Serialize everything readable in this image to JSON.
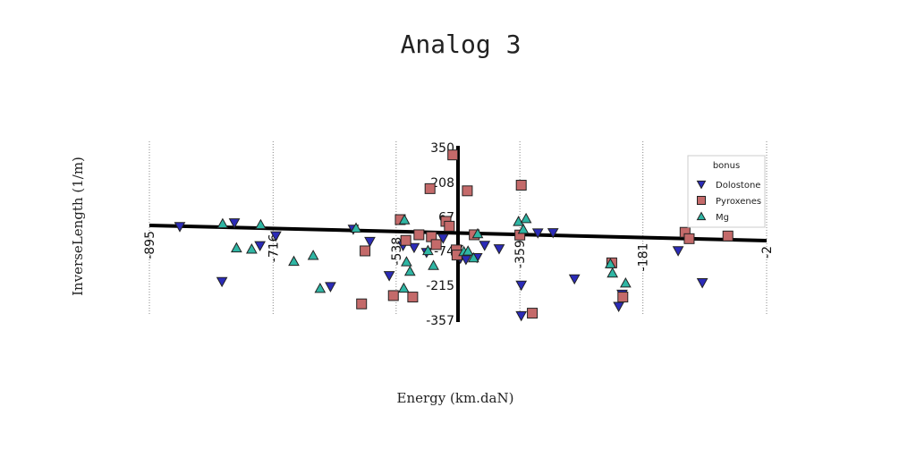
{
  "chart_data": {
    "type": "scatter",
    "title": "Analog 3",
    "xlabel": "Energy (km.daN)",
    "ylabel": "InverseLength (1/m)",
    "x_ticks": [
      "-895",
      "-716",
      "-538",
      "-359",
      "-181",
      "-2"
    ],
    "x_tick_values": [
      -895,
      -716,
      -538,
      -359,
      -181,
      -2
    ],
    "y_ticks": [
      "350",
      "208",
      "67",
      "-74",
      "-215",
      "-357"
    ],
    "y_tick_values": [
      350,
      208,
      67,
      -74,
      -215,
      -357
    ],
    "xlim": [
      -895,
      -2
    ],
    "ylim": [
      -357,
      350
    ],
    "grid": "vertical-dotted",
    "legend": {
      "title": "bonus",
      "position": "top-right"
    },
    "series": [
      {
        "name": "Dolostone",
        "marker": "triangle-down",
        "color": "#2b2bb8",
        "points": [
          [
            -851,
            27
          ],
          [
            -772,
            42
          ],
          [
            -790,
            -198
          ],
          [
            -735,
            -51
          ],
          [
            -712,
            -11
          ],
          [
            -633,
            -219
          ],
          [
            -600,
            16
          ],
          [
            -576,
            -34
          ],
          [
            -548,
            -174
          ],
          [
            -528,
            -51
          ],
          [
            -512,
            -59
          ],
          [
            -494,
            -79
          ],
          [
            -470,
            -21
          ],
          [
            -449,
            -67
          ],
          [
            -445,
            -103
          ],
          [
            -437,
            -108
          ],
          [
            -421,
            -100
          ],
          [
            -410,
            -50
          ],
          [
            -389,
            -64
          ],
          [
            -357,
            -213
          ],
          [
            -357,
            -338
          ],
          [
            -333,
            1
          ],
          [
            -311,
            2
          ],
          [
            -280,
            -187
          ],
          [
            -216,
            -300
          ],
          [
            -211,
            -250
          ],
          [
            -130,
            -72
          ],
          [
            -95,
            -203
          ]
        ]
      },
      {
        "name": "Pyroxenes",
        "marker": "square",
        "color": "#c46a6a",
        "points": [
          [
            -588,
            -290
          ],
          [
            -583,
            -73
          ],
          [
            -542,
            -256
          ],
          [
            -532,
            55
          ],
          [
            -524,
            -30
          ],
          [
            -514,
            -262
          ],
          [
            -505,
            -7
          ],
          [
            -489,
            182
          ],
          [
            -487,
            -15
          ],
          [
            -480,
            -47
          ],
          [
            -466,
            48
          ],
          [
            -461,
            28
          ],
          [
            -456,
            320
          ],
          [
            -451,
            -69
          ],
          [
            -450,
            -90
          ],
          [
            -435,
            173
          ],
          [
            -425,
            -7
          ],
          [
            -359,
            -8
          ],
          [
            -357,
            196
          ],
          [
            -341,
            -328
          ],
          [
            -226,
            -122
          ],
          [
            -210,
            -262
          ],
          [
            -120,
            3
          ],
          [
            -114,
            -23
          ],
          [
            -58,
            -12
          ]
        ]
      },
      {
        "name": "Mg",
        "marker": "triangle-up",
        "color": "#2fb6a4",
        "points": [
          [
            -789,
            38
          ],
          [
            -769,
            -61
          ],
          [
            -747,
            -66
          ],
          [
            -734,
            34
          ],
          [
            -686,
            -116
          ],
          [
            -658,
            -92
          ],
          [
            -648,
            -227
          ],
          [
            -596,
            20
          ],
          [
            -527,
            -226
          ],
          [
            -526,
            54
          ],
          [
            -523,
            -118
          ],
          [
            -518,
            -157
          ],
          [
            -492,
            -72
          ],
          [
            -484,
            -133
          ],
          [
            -440,
            -76
          ],
          [
            -434,
            -74
          ],
          [
            -426,
            -102
          ],
          [
            -420,
            -3
          ],
          [
            -361,
            47
          ],
          [
            -350,
            59
          ],
          [
            -354,
            15
          ],
          [
            -228,
            -126
          ],
          [
            -225,
            -164
          ],
          [
            -206,
            -205
          ]
        ]
      }
    ]
  }
}
